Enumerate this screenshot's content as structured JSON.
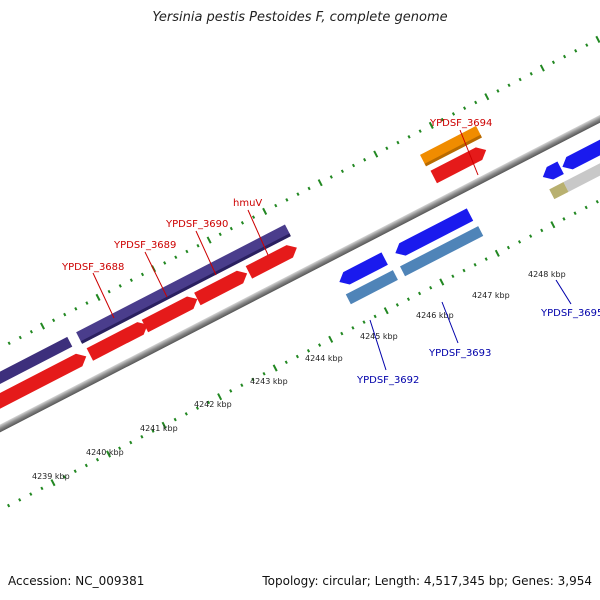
{
  "title": "Yersinia pestis Pestoides F, complete genome",
  "footer": {
    "accession": "Accession: NC_009381",
    "summary": "Topology: circular; Length: 4,517,345 bp; Genes: 3,954"
  },
  "axis": {
    "ticks": [
      "4239 kbp",
      "4240 kbp",
      "4241 kbp",
      "4242 kbp",
      "4243 kbp",
      "4244 kbp",
      "4245 kbp",
      "4246 kbp",
      "4247 kbp",
      "4248 kbp"
    ]
  },
  "genes_forward": [
    {
      "label": "YPDSF_3688",
      "color": "#e51a1a"
    },
    {
      "label": "YPDSF_3689",
      "color": "#e51a1a"
    },
    {
      "label": "YPDSF_3690",
      "color": "#e51a1a"
    },
    {
      "label": "hmuV",
      "color": "#e51a1a"
    },
    {
      "label": "YPDSF_3694",
      "color": "#e51a1a"
    }
  ],
  "genes_reverse": [
    {
      "label": "YPDSF_3692",
      "color": "#1a1aee"
    },
    {
      "label": "YPDSF_3693",
      "color": "#1a1aee"
    },
    {
      "label": "YPDSF_3695",
      "color": "#1a1aee"
    }
  ],
  "colors": {
    "forward_cds": "#e51a1a",
    "reverse_cds": "#1a1aee",
    "forward_label": "#cc0000",
    "reverse_label": "#0000aa",
    "feature_purple": "#4a3d8c",
    "feature_orange": "#f08c00",
    "feature_steelblue": "#4f84b8",
    "feature_gray": "#c8c8c8",
    "feature_olive": "#b8b070",
    "ticks": "#228822",
    "backbone": "#8a8a8a"
  }
}
